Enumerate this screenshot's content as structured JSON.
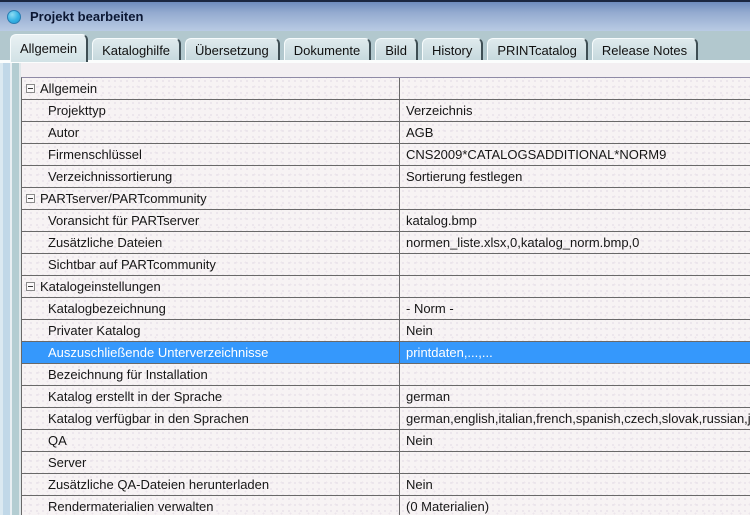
{
  "window": {
    "title": "Projekt bearbeiten",
    "icon": "app-circle-icon"
  },
  "tabs": [
    {
      "label": "Allgemein",
      "active": true
    },
    {
      "label": "Kataloghilfe",
      "active": false
    },
    {
      "label": "Übersetzung",
      "active": false
    },
    {
      "label": "Dokumente",
      "active": false
    },
    {
      "label": "Bild",
      "active": false
    },
    {
      "label": "History",
      "active": false
    },
    {
      "label": "PRINTcatalog",
      "active": false
    },
    {
      "label": "Release Notes",
      "active": false
    }
  ],
  "grid": {
    "rows": [
      {
        "type": "section",
        "label": "Allgemein",
        "value": "",
        "selected": false
      },
      {
        "type": "item",
        "label": "Projekttyp",
        "value": "Verzeichnis",
        "selected": false
      },
      {
        "type": "item",
        "label": "Autor",
        "value": "AGB",
        "selected": false
      },
      {
        "type": "item",
        "label": "Firmenschlüssel",
        "value": "CNS2009*CATALOGSADDITIONAL*NORM9",
        "selected": false
      },
      {
        "type": "item",
        "label": "Verzeichnissortierung",
        "value": "Sortierung festlegen",
        "selected": false
      },
      {
        "type": "section",
        "label": "PARTserver/PARTcommunity",
        "value": "",
        "selected": false
      },
      {
        "type": "item",
        "label": "Voransicht für PARTserver",
        "value": "katalog.bmp",
        "selected": false
      },
      {
        "type": "item",
        "label": "Zusätzliche Dateien",
        "value": "normen_liste.xlsx,0,katalog_norm.bmp,0",
        "selected": false
      },
      {
        "type": "item",
        "label": "Sichtbar auf PARTcommunity",
        "value": "",
        "selected": false
      },
      {
        "type": "section",
        "label": "Katalogeinstellungen",
        "value": "",
        "selected": false
      },
      {
        "type": "item",
        "label": "Katalogbezeichnung",
        "value": "- Norm -",
        "selected": false
      },
      {
        "type": "item",
        "label": "Privater Katalog",
        "value": "Nein",
        "selected": false
      },
      {
        "type": "item",
        "label": "Auszuschließende Unterverzeichnisse",
        "value": "printdaten,...,...",
        "selected": true
      },
      {
        "type": "item",
        "label": "Bezeichnung für Installation",
        "value": "",
        "selected": false
      },
      {
        "type": "item",
        "label": "Katalog erstellt in der Sprache",
        "value": "german",
        "selected": false
      },
      {
        "type": "item",
        "label": "Katalog verfügbar in den Sprachen",
        "value": "german,english,italian,french,spanish,czech,slovak,russian,japanese,ko",
        "selected": false
      },
      {
        "type": "item",
        "label": "QA",
        "value": "Nein",
        "selected": false
      },
      {
        "type": "item",
        "label": "Server",
        "value": "",
        "selected": false
      },
      {
        "type": "item",
        "label": "Zusätzliche QA-Dateien herunterladen",
        "value": "Nein",
        "selected": false
      },
      {
        "type": "item",
        "label": "Rendermaterialien verwalten",
        "value": "(0 Materialien)",
        "selected": false
      }
    ]
  },
  "colors": {
    "selection": "#3598fc",
    "titlebar_top": "#6f8cbd",
    "titlebar_bottom": "#b9cbe4",
    "tabstrip": "#b2c8ce",
    "row_background": "#f7f3f4",
    "gridline": "#696969"
  }
}
